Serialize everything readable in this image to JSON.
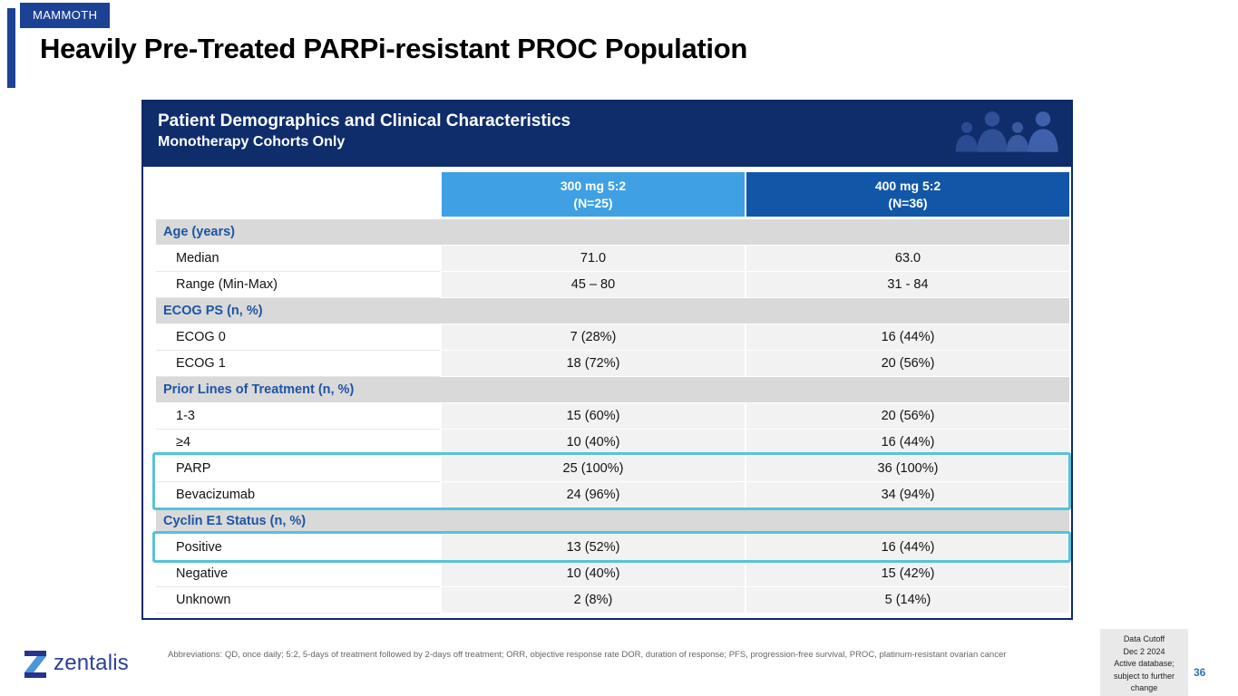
{
  "slide": {
    "badge": "MAMMOTH",
    "title": "Heavily Pre-Treated PARPi-resistant PROC Population",
    "page_number": "36"
  },
  "table": {
    "header": {
      "title": "Patient Demographics and Clinical Characteristics",
      "subtitle": "Monotherapy Cohorts Only"
    },
    "columns": [
      {
        "line1": "300 mg 5:2",
        "line2": "(N=25)"
      },
      {
        "line1": "400 mg 5:2",
        "line2": "(N=36)"
      }
    ],
    "rows": [
      {
        "type": "section",
        "label": "Age (years)"
      },
      {
        "type": "data",
        "label": "Median",
        "values": [
          "71.0",
          "63.0"
        ]
      },
      {
        "type": "data",
        "label": "Range (Min-Max)",
        "values": [
          "45 – 80",
          "31 - 84"
        ]
      },
      {
        "type": "section",
        "label": "ECOG PS (n, %)"
      },
      {
        "type": "data",
        "label": "ECOG 0",
        "values": [
          "7 (28%)",
          "16 (44%)"
        ]
      },
      {
        "type": "data",
        "label": "ECOG 1",
        "values": [
          "18 (72%)",
          "20 (56%)"
        ]
      },
      {
        "type": "section",
        "label": "Prior Lines of Treatment (n, %)"
      },
      {
        "type": "data",
        "label": "1-3",
        "values": [
          "15 (60%)",
          "20 (56%)"
        ]
      },
      {
        "type": "data",
        "label": "≥4",
        "values": [
          "10 (40%)",
          "16 (44%)"
        ]
      },
      {
        "type": "data",
        "label": "PARP",
        "values": [
          "25 (100%)",
          "36 (100%)"
        ],
        "highlight": 1
      },
      {
        "type": "data",
        "label": "Bevacizumab",
        "values": [
          "24 (96%)",
          "34 (94%)"
        ],
        "highlight": 1
      },
      {
        "type": "section",
        "label": "Cyclin E1 Status (n, %)"
      },
      {
        "type": "data",
        "label": "Positive",
        "values": [
          "13 (52%)",
          "16 (44%)"
        ],
        "highlight": 2
      },
      {
        "type": "data",
        "label": "Negative",
        "values": [
          "10 (40%)",
          "15 (42%)"
        ]
      },
      {
        "type": "data",
        "label": "Unknown",
        "values": [
          "2 (8%)",
          "5 (14%)"
        ]
      }
    ]
  },
  "footer": {
    "logo_text": "zentalis",
    "abbreviations": "Abbreviations: QD, once daily; 5:2, 5-days of treatment followed by 2-days off treatment; ORR, objective response rate DOR, duration of response; PFS, progression-free survival, PROC, platinum-resistant ovarian cancer",
    "data_cutoff_lines": [
      "Data Cutoff",
      "Dec 2 2024",
      "Active database;",
      "subject to further",
      "change"
    ]
  },
  "icons": {
    "header": "people-silhouettes-icon",
    "logo": "zentalis-logo-mark"
  },
  "colors": {
    "brand_blue": "#1c4296",
    "header_navy": "#0f2d6b",
    "col_300mg_blue": "#3fa0e4",
    "col_400mg_blue": "#1257a7",
    "section_bg": "#d9d9d9",
    "section_text_blue": "#1d55a4",
    "highlight_cyan": "#58c2d9",
    "page_number_blue": "#2e74b5"
  }
}
